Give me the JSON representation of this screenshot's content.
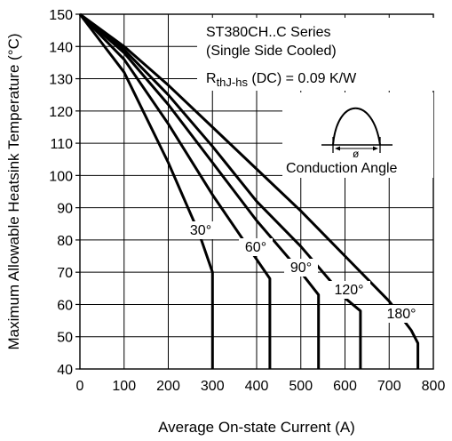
{
  "chart_data": {
    "type": "line",
    "title": "",
    "xlabel": "Average On-state Current (A)",
    "ylabel": "Maximum Allowable Heatsink Temperature (°C)",
    "xlim": [
      0,
      800
    ],
    "ylim": [
      40,
      150
    ],
    "xticks": [
      0,
      100,
      200,
      300,
      400,
      500,
      600,
      700,
      800
    ],
    "yticks": [
      40,
      50,
      60,
      70,
      80,
      90,
      100,
      110,
      120,
      130,
      140,
      150
    ],
    "grid": true,
    "annotations": {
      "line1": "ST380CH..C Series",
      "line2": "(Single Side Cooled)",
      "line3_main": "R",
      "line3_sub": "thJ-hs",
      "line3_rest": " (DC) = 0.09 K/W",
      "inset_symbol": "ø",
      "inset_label": "Conduction Angle"
    },
    "series": [
      {
        "name": "30°",
        "x": [
          0,
          100,
          200,
          270,
          300,
          300
        ],
        "y": [
          150,
          132,
          104,
          82,
          70,
          40
        ]
      },
      {
        "name": "60°",
        "x": [
          0,
          100,
          200,
          300,
          380,
          430,
          430
        ],
        "y": [
          150,
          136,
          116,
          94,
          78,
          68,
          40
        ]
      },
      {
        "name": "90°",
        "x": [
          0,
          100,
          200,
          300,
          400,
          500,
          540,
          540
        ],
        "y": [
          150,
          138,
          122,
          104,
          86,
          70,
          63,
          40
        ]
      },
      {
        "name": "120°",
        "x": [
          0,
          100,
          200,
          300,
          400,
          500,
          600,
          635,
          635
        ],
        "y": [
          150,
          139,
          125,
          109,
          92,
          78,
          62,
          58,
          40
        ]
      },
      {
        "name": "180°",
        "x": [
          0,
          100,
          200,
          300,
          400,
          500,
          600,
          700,
          750,
          765,
          765
        ],
        "y": [
          150,
          140,
          128,
          115,
          102,
          89,
          75,
          61,
          52,
          48,
          40
        ]
      }
    ]
  }
}
